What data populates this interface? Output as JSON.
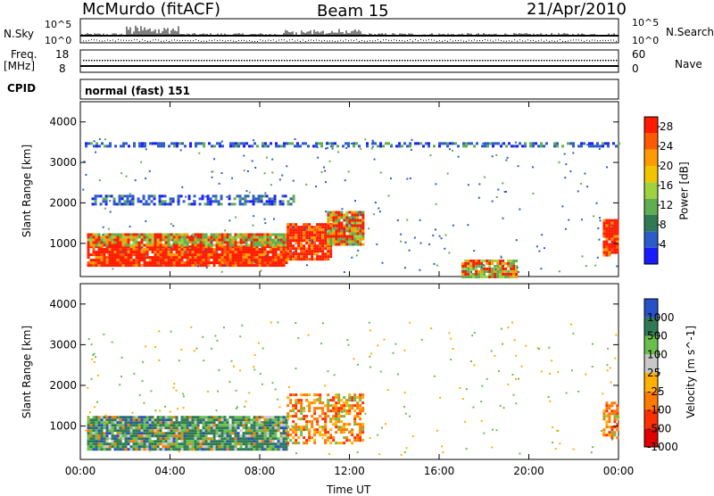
{
  "header": {
    "station": "McMurdo (fitACF)",
    "beam": "Beam 15",
    "date": "21/Apr/2010"
  },
  "nsky_panel": {
    "left_label": "N.Sky",
    "left_ticks": [
      "10^5",
      "10^0"
    ],
    "right_label": "N.Search",
    "right_ticks": [
      "10^5",
      "10^0"
    ]
  },
  "freq_panel": {
    "left_label_1": "Freq.",
    "left_label_2": "[MHz]",
    "left_ticks": [
      "18",
      "8"
    ],
    "right_label": "Nave",
    "right_ticks": [
      "60",
      "0"
    ]
  },
  "cpid": {
    "label": "CPID",
    "value": "normal (fast) 151"
  },
  "x_axis": {
    "ticks": [
      "00:00",
      "04:00",
      "08:00",
      "12:00",
      "16:00",
      "20:00",
      "00:00"
    ],
    "label": "Time UT"
  },
  "colors": {
    "power": [
      "#1a1aff",
      "#2b5cc9",
      "#2f7a55",
      "#5fae4f",
      "#9fd23f",
      "#f2c400",
      "#ff9a00",
      "#ff5a00",
      "#ff1a00"
    ],
    "velocity": [
      "#2850c8",
      "#2f7a55",
      "#6abf4b",
      "#c8c8c8",
      "#ffb000",
      "#ff7a00",
      "#ff3000",
      "#e00000"
    ]
  },
  "chart_data": [
    {
      "type": "heatmap",
      "title": "",
      "ylabel": "Slant Range [km]",
      "xlabel": "",
      "x_range_hours": [
        0,
        24
      ],
      "ylim": [
        180,
        4500
      ],
      "y_ticks": [
        "1000",
        "2000",
        "3000",
        "4000"
      ],
      "colorbar": {
        "label": "Power [dB]",
        "ticks": [
          "4",
          "8",
          "12",
          "16",
          "20",
          "24",
          "28"
        ],
        "range": [
          0,
          30
        ]
      },
      "regions": [
        {
          "t0": 0.3,
          "t1": 9.2,
          "r0": 450,
          "r1": 950,
          "level": "high"
        },
        {
          "t0": 0.3,
          "t1": 9.2,
          "r0": 950,
          "r1": 1250,
          "level": "mid"
        },
        {
          "t0": 9.2,
          "t1": 11.2,
          "r0": 600,
          "r1": 1500,
          "level": "high"
        },
        {
          "t0": 11.0,
          "t1": 12.6,
          "r0": 1000,
          "r1": 1800,
          "level": "mid"
        },
        {
          "t0": 17.0,
          "t1": 19.4,
          "r0": 200,
          "r1": 600,
          "level": "mid"
        },
        {
          "t0": 23.3,
          "t1": 24.0,
          "r0": 700,
          "r1": 1600,
          "level": "high"
        },
        {
          "t0": 0.5,
          "t1": 9.5,
          "r0": 2000,
          "r1": 2200,
          "level": "low"
        },
        {
          "t0": 0.2,
          "t1": 24.0,
          "r0": 3420,
          "r1": 3500,
          "level": "low"
        }
      ]
    },
    {
      "type": "heatmap",
      "title": "",
      "ylabel": "Slant Range [km]",
      "xlabel": "Time UT",
      "x_range_hours": [
        0,
        24
      ],
      "ylim": [
        180,
        4500
      ],
      "y_ticks": [
        "1000",
        "2000",
        "3000",
        "4000"
      ],
      "colorbar": {
        "label": "Velocity [m s^-1]",
        "ticks": [
          "1000",
          "500",
          "100",
          "25",
          "-25",
          "-100",
          "-500",
          "-1000"
        ],
        "range": [
          -1000,
          1000
        ]
      },
      "regions": [
        {
          "t0": 0.3,
          "t1": 9.2,
          "r0": 450,
          "r1": 1250,
          "level": "positive"
        },
        {
          "t0": 9.2,
          "t1": 12.6,
          "r0": 600,
          "r1": 1800,
          "level": "negative"
        },
        {
          "t0": 23.3,
          "t1": 24.0,
          "r0": 700,
          "r1": 1600,
          "level": "negative"
        }
      ]
    }
  ]
}
